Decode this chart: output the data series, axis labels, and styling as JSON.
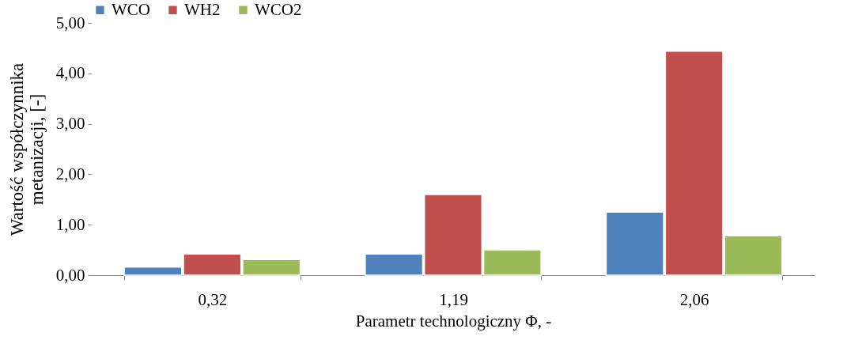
{
  "chart_data": {
    "type": "bar",
    "xlabel": "Parametr technologiczny Φ, -",
    "ylabel": "Wartość współczynnika metanizacji, [-]",
    "categories": [
      "0,32",
      "1,19",
      "2,06"
    ],
    "series": [
      {
        "name": "WCO",
        "color": "#4f81bd",
        "values": [
          0.16,
          0.42,
          1.25
        ]
      },
      {
        "name": "WH2",
        "color": "#c0504d",
        "values": [
          0.42,
          1.6,
          4.44
        ]
      },
      {
        "name": "WCO2",
        "color": "#9bbb59",
        "values": [
          0.31,
          0.5,
          0.78
        ]
      }
    ],
    "ylim": [
      0,
      5
    ],
    "yticks": [
      {
        "value": 0,
        "label": "0,00"
      },
      {
        "value": 1,
        "label": "1,00"
      },
      {
        "value": 2,
        "label": "2,00"
      },
      {
        "value": 3,
        "label": "3,00"
      },
      {
        "value": 4,
        "label": "4,00"
      },
      {
        "value": 5,
        "label": "5,00"
      }
    ],
    "grid": false,
    "legend": "top"
  }
}
